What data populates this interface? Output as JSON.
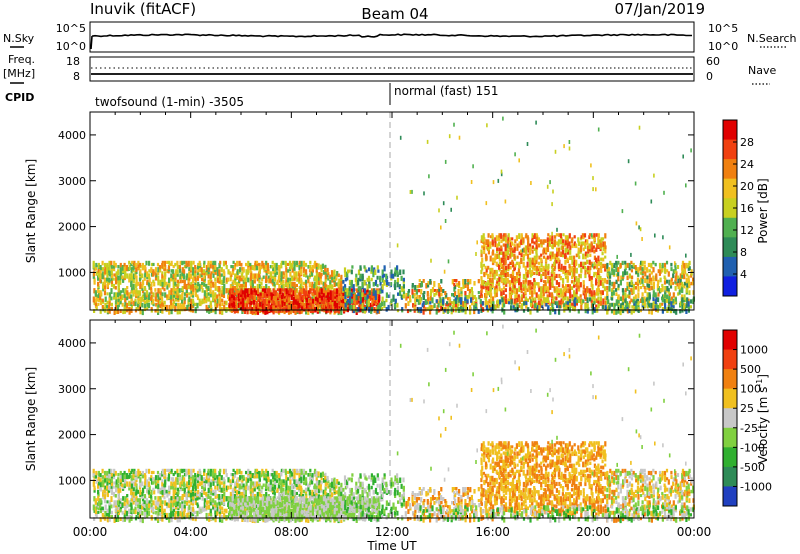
{
  "header": {
    "title": "Inuvik (fitACF)",
    "beam": "Beam 04",
    "date": "07/Jan/2019"
  },
  "nsky_panel": {
    "left_label": "N.Sky",
    "right_label": "N.Search",
    "left_ticks": [
      "10^5",
      "10^0"
    ],
    "right_ticks": [
      "10^5",
      "10^0"
    ]
  },
  "freq_panel": {
    "left_label": "Freq.",
    "left_unit": "[MHz]",
    "right_label": "Nave",
    "left_ticks": [
      "18",
      "8"
    ],
    "right_ticks": [
      "60",
      "0"
    ]
  },
  "cpid_panel": {
    "label": "CPID",
    "modes": [
      {
        "text": "twofsound (1-min) -3505",
        "start_hour": 0,
        "end_hour": 12
      },
      {
        "text": "normal (fast) 151",
        "start_hour": 12,
        "end_hour": 24
      }
    ]
  },
  "chart_data": [
    {
      "type": "heatmap",
      "name": "power-panel",
      "ylabel": "Slant Range [km]",
      "xlabel": "",
      "yticks": [
        "4000",
        "3000",
        "2000",
        "1000"
      ],
      "ytick_values": [
        4000,
        3000,
        2000,
        1000
      ],
      "ylim": [
        180,
        4500
      ],
      "xlim_hours": [
        0,
        24
      ],
      "colorbar": {
        "label": "Power [dB]",
        "ticks": [
          "28",
          "24",
          "20",
          "16",
          "12",
          "8",
          "4"
        ],
        "tick_values": [
          28,
          24,
          20,
          16,
          12,
          8,
          4
        ],
        "range": [
          0,
          32
        ],
        "colors": [
          "#1020e0",
          "#2060b0",
          "#2e8b57",
          "#50b050",
          "#c8d020",
          "#f0c020",
          "#f08010",
          "#f04010",
          "#e00000"
        ]
      }
    },
    {
      "type": "heatmap",
      "name": "velocity-panel",
      "ylabel": "Slant Range [km]",
      "xlabel": "Time UT",
      "yticks": [
        "4000",
        "3000",
        "2000",
        "1000"
      ],
      "ytick_values": [
        4000,
        3000,
        2000,
        1000
      ],
      "ylim": [
        180,
        4500
      ],
      "xlim_hours": [
        0,
        24
      ],
      "colorbar": {
        "label": "Velocity  [m s",
        "label_exp": "-1",
        "label_close": "]",
        "ticks": [
          "1000",
          "500",
          "100",
          "25",
          "-25",
          "-100",
          "-500",
          "-1000"
        ],
        "colors": [
          "#2040c0",
          "#2e8b57",
          "#30b030",
          "#80d040",
          "#c8c8c8",
          "#f0c020",
          "#f08010",
          "#f04010",
          "#e00000"
        ]
      }
    }
  ],
  "time_axis": {
    "ticks": [
      "00:00",
      "04:00",
      "08:00",
      "12:00",
      "16:00",
      "20:00",
      "00:00"
    ],
    "tick_hours": [
      0,
      4,
      8,
      12,
      16,
      20,
      24
    ],
    "label": "Time UT"
  }
}
